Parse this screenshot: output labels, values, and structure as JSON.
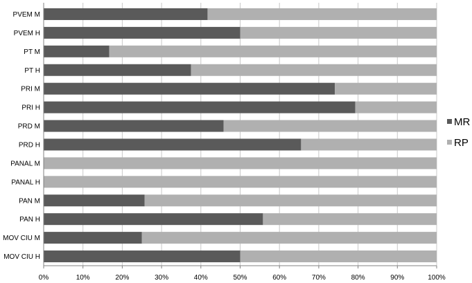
{
  "chart_data": {
    "type": "bar",
    "orientation": "horizontal",
    "stacked": "percent",
    "categories": [
      "PVEM M",
      "PVEM H",
      "PT M",
      "PT H",
      "PRI M",
      "PRI H",
      "PRD M",
      "PRD H",
      "PANAL M",
      "PANAL H",
      "PAN M",
      "PAN H",
      "MOV CIU M",
      "MOV CIU H"
    ],
    "series": [
      {
        "name": "MR",
        "color": "#5a5a5a",
        "values": [
          41.7,
          50,
          16.7,
          37.5,
          74.1,
          79.3,
          45.8,
          65.5,
          0,
          0,
          25.7,
          55.8,
          25,
          50
        ]
      },
      {
        "name": "RP",
        "color": "#b0b0b0",
        "values": [
          58.3,
          50,
          83.3,
          62.5,
          25.9,
          20.7,
          54.2,
          34.5,
          100,
          100,
          74.3,
          44.2,
          75,
          50
        ]
      }
    ],
    "xticks": [
      "0%",
      "10%",
      "20%",
      "30%",
      "40%",
      "50%",
      "60%",
      "70%",
      "80%",
      "90%",
      "100%"
    ],
    "xlim": [
      0,
      100
    ],
    "title": "",
    "xlabel": "",
    "ylabel": "",
    "grid": "vertical",
    "legend": "right"
  }
}
